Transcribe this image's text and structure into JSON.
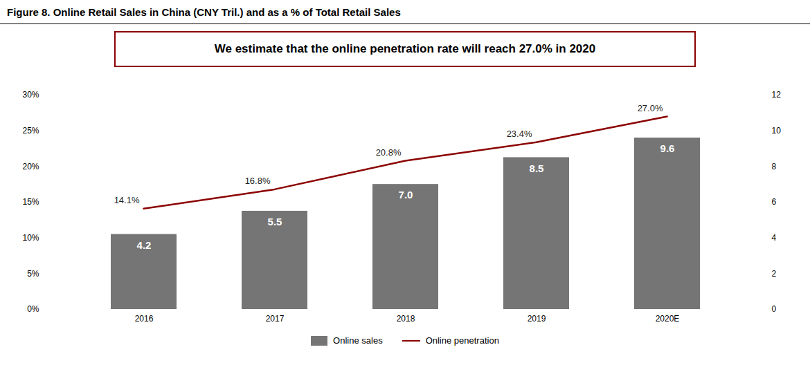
{
  "chart_data": {
    "type": "bar",
    "title": "Figure 8. Online Retail Sales in China (CNY Tril.) and as a % of Total Retail Sales",
    "annotation": "We estimate that the online penetration rate will reach 27.0% in 2020",
    "categories": [
      "2016",
      "2017",
      "2018",
      "2019",
      "2020E"
    ],
    "series": [
      {
        "name": "Online sales",
        "type": "bar",
        "axis": "y2",
        "color": "#757575",
        "values": [
          4.2,
          5.5,
          7.0,
          8.5,
          9.6
        ],
        "value_labels": [
          "4.2",
          "5.5",
          "7.0",
          "8.5",
          "9.6"
        ],
        "data_labels": true
      },
      {
        "name": "Online penetration",
        "type": "line",
        "color": "#8B0000",
        "values": [
          14.1,
          16.8,
          20.8,
          23.4,
          27.0
        ],
        "value_labels": [
          "14.1%",
          "16.8%",
          "20.8%",
          "23.4%",
          "27.0%"
        ],
        "data_labels": true
      }
    ],
    "ylim": [
      0,
      30
    ],
    "yticks": [
      {
        "value": 0,
        "label": "0%"
      },
      {
        "value": 5,
        "label": "5%"
      },
      {
        "value": 10,
        "label": "10%"
      },
      {
        "value": 15,
        "label": "15%"
      },
      {
        "value": 20,
        "label": "20%"
      },
      {
        "value": 25,
        "label": "25%"
      },
      {
        "value": 30,
        "label": "30%"
      }
    ],
    "y2lim": [
      0,
      12
    ],
    "y2ticks": [
      0,
      2,
      4,
      6,
      8,
      10,
      12
    ],
    "legend": "bottom"
  }
}
